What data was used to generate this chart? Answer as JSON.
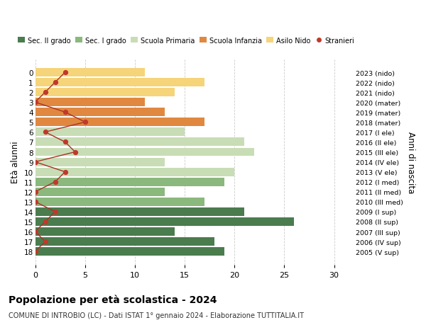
{
  "ages": [
    18,
    17,
    16,
    15,
    14,
    13,
    12,
    11,
    10,
    9,
    8,
    7,
    6,
    5,
    4,
    3,
    2,
    1,
    0
  ],
  "bar_values": [
    19,
    18,
    14,
    26,
    21,
    17,
    13,
    19,
    20,
    13,
    22,
    21,
    15,
    17,
    13,
    11,
    14,
    17,
    11
  ],
  "bar_colors": [
    "#4a7c4e",
    "#4a7c4e",
    "#4a7c4e",
    "#4a7c4e",
    "#4a7c4e",
    "#8ab87d",
    "#8ab87d",
    "#8ab87d",
    "#c8ddb5",
    "#c8ddb5",
    "#c8ddb5",
    "#c8ddb5",
    "#c8ddb5",
    "#e08840",
    "#e08840",
    "#e08840",
    "#f5d47a",
    "#f5d47a",
    "#f5d47a"
  ],
  "stranieri_values": [
    0,
    1,
    0,
    1,
    2,
    0,
    0,
    2,
    3,
    0,
    4,
    3,
    1,
    5,
    3,
    0,
    1,
    2,
    3
  ],
  "right_labels": [
    "2005 (V sup)",
    "2006 (IV sup)",
    "2007 (III sup)",
    "2008 (II sup)",
    "2009 (I sup)",
    "2010 (III med)",
    "2011 (II med)",
    "2012 (I med)",
    "2013 (V ele)",
    "2014 (IV ele)",
    "2015 (III ele)",
    "2016 (II ele)",
    "2017 (I ele)",
    "2018 (mater)",
    "2019 (mater)",
    "2020 (mater)",
    "2021 (nido)",
    "2022 (nido)",
    "2023 (nido)"
  ],
  "legend_labels": [
    "Sec. II grado",
    "Sec. I grado",
    "Scuola Primaria",
    "Scuola Infanzia",
    "Asilo Nido",
    "Stranieri"
  ],
  "legend_colors": [
    "#4a7c4e",
    "#8ab87d",
    "#c8ddb5",
    "#e08840",
    "#f5d47a",
    "#c0392b"
  ],
  "ylabel_left": "Età alunni",
  "ylabel_right": "Anni di nascita",
  "title": "Popolazione per età scolastica - 2024",
  "subtitle": "COMUNE DI INTROBIO (LC) - Dati ISTAT 1° gennaio 2024 - Elaborazione TUTTITALIA.IT",
  "xlim": [
    0,
    32
  ],
  "stranieri_color": "#c0392b",
  "stranieri_line_color": "#a93226",
  "bg_color": "#ffffff",
  "grid_color": "#cccccc"
}
